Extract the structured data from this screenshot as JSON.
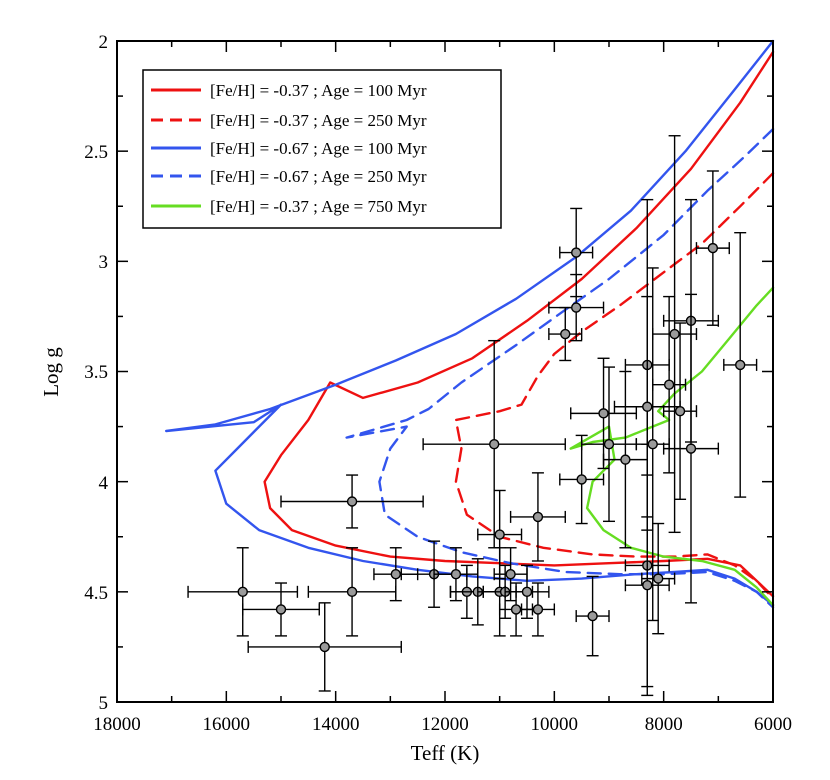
{
  "chart_data": {
    "type": "scatter",
    "title": "",
    "xlabel": "Teff (K)",
    "ylabel": "Log g",
    "xlim": [
      18000,
      6000
    ],
    "ylim": [
      5,
      2
    ],
    "x_ticks": [
      "18000",
      "16000",
      "14000",
      "12000",
      "10000",
      "8000",
      "6000"
    ],
    "y_ticks": [
      "2",
      "2.5",
      "3",
      "3.5",
      "4",
      "4.5",
      "5"
    ],
    "grid": false,
    "legend_position": "top-left",
    "series": [
      {
        "name": "[Fe/H] = -0.37 ; Age = 100 Myr",
        "color": "#ee1111",
        "dash": "solid",
        "points": [
          [
            6000,
            2.05
          ],
          [
            6600,
            2.28
          ],
          [
            7500,
            2.58
          ],
          [
            8500,
            2.85
          ],
          [
            9500,
            3.08
          ],
          [
            10500,
            3.27
          ],
          [
            11500,
            3.44
          ],
          [
            12500,
            3.55
          ],
          [
            13500,
            3.62
          ],
          [
            14100,
            3.55
          ],
          [
            14500,
            3.72
          ],
          [
            15000,
            3.88
          ],
          [
            15300,
            4.0
          ],
          [
            15200,
            4.12
          ],
          [
            14800,
            4.22
          ],
          [
            14000,
            4.29
          ],
          [
            13000,
            4.34
          ],
          [
            12000,
            4.36
          ],
          [
            11000,
            4.37
          ],
          [
            10000,
            4.38
          ],
          [
            9000,
            4.37
          ],
          [
            8000,
            4.36
          ],
          [
            7200,
            4.35
          ],
          [
            6600,
            4.38
          ],
          [
            6300,
            4.45
          ],
          [
            6000,
            4.52
          ]
        ]
      },
      {
        "name": "[Fe/H] = -0.37 ; Age = 250 Myr",
        "color": "#ee1111",
        "dash": "dashed",
        "points": [
          [
            6000,
            2.6
          ],
          [
            6600,
            2.75
          ],
          [
            7300,
            2.92
          ],
          [
            8000,
            3.05
          ],
          [
            8800,
            3.2
          ],
          [
            9500,
            3.32
          ],
          [
            10000,
            3.42
          ],
          [
            10300,
            3.52
          ],
          [
            10600,
            3.65
          ],
          [
            11000,
            3.68
          ],
          [
            11800,
            3.72
          ],
          [
            11700,
            3.85
          ],
          [
            11800,
            4.0
          ],
          [
            11600,
            4.15
          ],
          [
            11000,
            4.25
          ],
          [
            10200,
            4.3
          ],
          [
            9300,
            4.33
          ],
          [
            8500,
            4.34
          ],
          [
            7800,
            4.34
          ],
          [
            7200,
            4.33
          ],
          [
            6700,
            4.38
          ],
          [
            6300,
            4.45
          ],
          [
            6000,
            4.53
          ]
        ]
      },
      {
        "name": "[Fe/H] = -0.67 ; Age = 100 Myr",
        "color": "#3355ee",
        "dash": "solid",
        "points": [
          [
            6000,
            2.0
          ],
          [
            6700,
            2.22
          ],
          [
            7600,
            2.5
          ],
          [
            8600,
            2.77
          ],
          [
            9600,
            2.98
          ],
          [
            10700,
            3.17
          ],
          [
            11800,
            3.33
          ],
          [
            12900,
            3.45
          ],
          [
            14000,
            3.56
          ],
          [
            15200,
            3.67
          ],
          [
            16200,
            3.74
          ],
          [
            17100,
            3.77
          ],
          [
            15500,
            3.73
          ],
          [
            15000,
            3.65
          ],
          [
            15400,
            3.75
          ],
          [
            15800,
            3.85
          ],
          [
            16200,
            3.95
          ],
          [
            16000,
            4.1
          ],
          [
            15400,
            4.22
          ],
          [
            14500,
            4.3
          ],
          [
            13500,
            4.36
          ],
          [
            12500,
            4.4
          ],
          [
            11500,
            4.43
          ],
          [
            10500,
            4.45
          ],
          [
            9500,
            4.44
          ],
          [
            8500,
            4.42
          ],
          [
            7800,
            4.41
          ],
          [
            7200,
            4.4
          ],
          [
            6700,
            4.44
          ],
          [
            6300,
            4.5
          ],
          [
            6000,
            4.56
          ]
        ]
      },
      {
        "name": "[Fe/H] = -0.67 ; Age = 250 Myr",
        "color": "#3355ee",
        "dash": "dashed",
        "points": [
          [
            6000,
            2.4
          ],
          [
            6500,
            2.52
          ],
          [
            7200,
            2.68
          ],
          [
            8000,
            2.88
          ],
          [
            9000,
            3.08
          ],
          [
            9800,
            3.22
          ],
          [
            10700,
            3.38
          ],
          [
            11700,
            3.55
          ],
          [
            12300,
            3.67
          ],
          [
            12700,
            3.72
          ],
          [
            13800,
            3.8
          ],
          [
            12700,
            3.75
          ],
          [
            13000,
            3.85
          ],
          [
            13200,
            4.0
          ],
          [
            13100,
            4.15
          ],
          [
            12500,
            4.25
          ],
          [
            11700,
            4.32
          ],
          [
            10800,
            4.37
          ],
          [
            9800,
            4.41
          ],
          [
            8800,
            4.42
          ],
          [
            8000,
            4.42
          ],
          [
            7200,
            4.41
          ],
          [
            6700,
            4.45
          ],
          [
            6300,
            4.5
          ],
          [
            6000,
            4.57
          ]
        ]
      },
      {
        "name": "[Fe/H] = -0.37 ; Age = 750 Myr",
        "color": "#66dd22",
        "dash": "solid",
        "points": [
          [
            6000,
            3.12
          ],
          [
            6300,
            3.2
          ],
          [
            6800,
            3.35
          ],
          [
            7300,
            3.5
          ],
          [
            7800,
            3.6
          ],
          [
            8100,
            3.68
          ],
          [
            7900,
            3.72
          ],
          [
            8300,
            3.76
          ],
          [
            8700,
            3.8
          ],
          [
            9300,
            3.82
          ],
          [
            9700,
            3.85
          ],
          [
            9000,
            3.75
          ],
          [
            8900,
            3.9
          ],
          [
            9300,
            4.0
          ],
          [
            9400,
            4.12
          ],
          [
            9100,
            4.22
          ],
          [
            8600,
            4.3
          ],
          [
            8000,
            4.34
          ],
          [
            7300,
            4.36
          ],
          [
            6700,
            4.4
          ],
          [
            6300,
            4.48
          ],
          [
            6000,
            4.56
          ]
        ]
      }
    ],
    "observations": [
      {
        "teff": 15700,
        "logg": 4.5,
        "xerr": 1000,
        "yerr": 0.2
      },
      {
        "teff": 15000,
        "logg": 4.58,
        "xerr": 700,
        "yerr": 0.12
      },
      {
        "teff": 14200,
        "logg": 4.75,
        "xerr": 1400,
        "yerr": 0.2
      },
      {
        "teff": 13700,
        "logg": 4.09,
        "xerr": 1300,
        "yerr": 0.12
      },
      {
        "teff": 13700,
        "logg": 4.5,
        "xerr": 800,
        "yerr": 0.2
      },
      {
        "teff": 12900,
        "logg": 4.42,
        "xerr": 400,
        "yerr": 0.12
      },
      {
        "teff": 12200,
        "logg": 4.42,
        "xerr": 600,
        "yerr": 0.15
      },
      {
        "teff": 11800,
        "logg": 4.42,
        "xerr": 400,
        "yerr": 0.12
      },
      {
        "teff": 11600,
        "logg": 4.5,
        "xerr": 300,
        "yerr": 0.12
      },
      {
        "teff": 11400,
        "logg": 4.5,
        "xerr": 500,
        "yerr": 0.15
      },
      {
        "teff": 11100,
        "logg": 3.83,
        "xerr": 1300,
        "yerr": 0.47
      },
      {
        "teff": 11000,
        "logg": 4.24,
        "xerr": 400,
        "yerr": 0.2
      },
      {
        "teff": 11000,
        "logg": 4.5,
        "xerr": 300,
        "yerr": 0.2
      },
      {
        "teff": 10900,
        "logg": 4.5,
        "xerr": 500,
        "yerr": 0.12
      },
      {
        "teff": 10800,
        "logg": 4.42,
        "xerr": 300,
        "yerr": 0.12
      },
      {
        "teff": 10700,
        "logg": 4.58,
        "xerr": 300,
        "yerr": 0.12
      },
      {
        "teff": 10500,
        "logg": 4.5,
        "xerr": 400,
        "yerr": 0.12
      },
      {
        "teff": 10300,
        "logg": 4.16,
        "xerr": 500,
        "yerr": 0.2
      },
      {
        "teff": 10300,
        "logg": 4.58,
        "xerr": 300,
        "yerr": 0.12
      },
      {
        "teff": 9800,
        "logg": 3.33,
        "xerr": 300,
        "yerr": 0.12
      },
      {
        "teff": 9600,
        "logg": 2.96,
        "xerr": 300,
        "yerr": 0.2
      },
      {
        "teff": 9600,
        "logg": 3.21,
        "xerr": 500,
        "yerr": 0.15
      },
      {
        "teff": 9500,
        "logg": 3.99,
        "xerr": 400,
        "yerr": 0.2
      },
      {
        "teff": 9300,
        "logg": 4.61,
        "xerr": 300,
        "yerr": 0.18
      },
      {
        "teff": 9100,
        "logg": 3.69,
        "xerr": 600,
        "yerr": 0.25
      },
      {
        "teff": 9000,
        "logg": 3.83,
        "xerr": 500,
        "yerr": 0.35
      },
      {
        "teff": 8700,
        "logg": 3.9,
        "xerr": 400,
        "yerr": 0.4
      },
      {
        "teff": 8300,
        "logg": 3.47,
        "xerr": 400,
        "yerr": 0.75
      },
      {
        "teff": 8300,
        "logg": 3.66,
        "xerr": 600,
        "yerr": 0.5
      },
      {
        "teff": 8300,
        "logg": 4.38,
        "xerr": 400,
        "yerr": 0.55
      },
      {
        "teff": 8300,
        "logg": 4.47,
        "xerr": 400,
        "yerr": 0.5
      },
      {
        "teff": 8200,
        "logg": 3.83,
        "xerr": 300,
        "yerr": 0.8
      },
      {
        "teff": 8100,
        "logg": 4.44,
        "xerr": 300,
        "yerr": 0.25
      },
      {
        "teff": 7900,
        "logg": 3.56,
        "xerr": 300,
        "yerr": 0.4
      },
      {
        "teff": 7800,
        "logg": 3.33,
        "xerr": 400,
        "yerr": 0.9
      },
      {
        "teff": 7700,
        "logg": 3.68,
        "xerr": 300,
        "yerr": 0.4
      },
      {
        "teff": 7500,
        "logg": 3.27,
        "xerr": 500,
        "yerr": 0.55
      },
      {
        "teff": 7500,
        "logg": 3.85,
        "xerr": 500,
        "yerr": 0.7
      },
      {
        "teff": 7100,
        "logg": 2.94,
        "xerr": 300,
        "yerr": 0.35
      },
      {
        "teff": 6600,
        "logg": 3.47,
        "xerr": 300,
        "yerr": 0.6
      }
    ]
  }
}
